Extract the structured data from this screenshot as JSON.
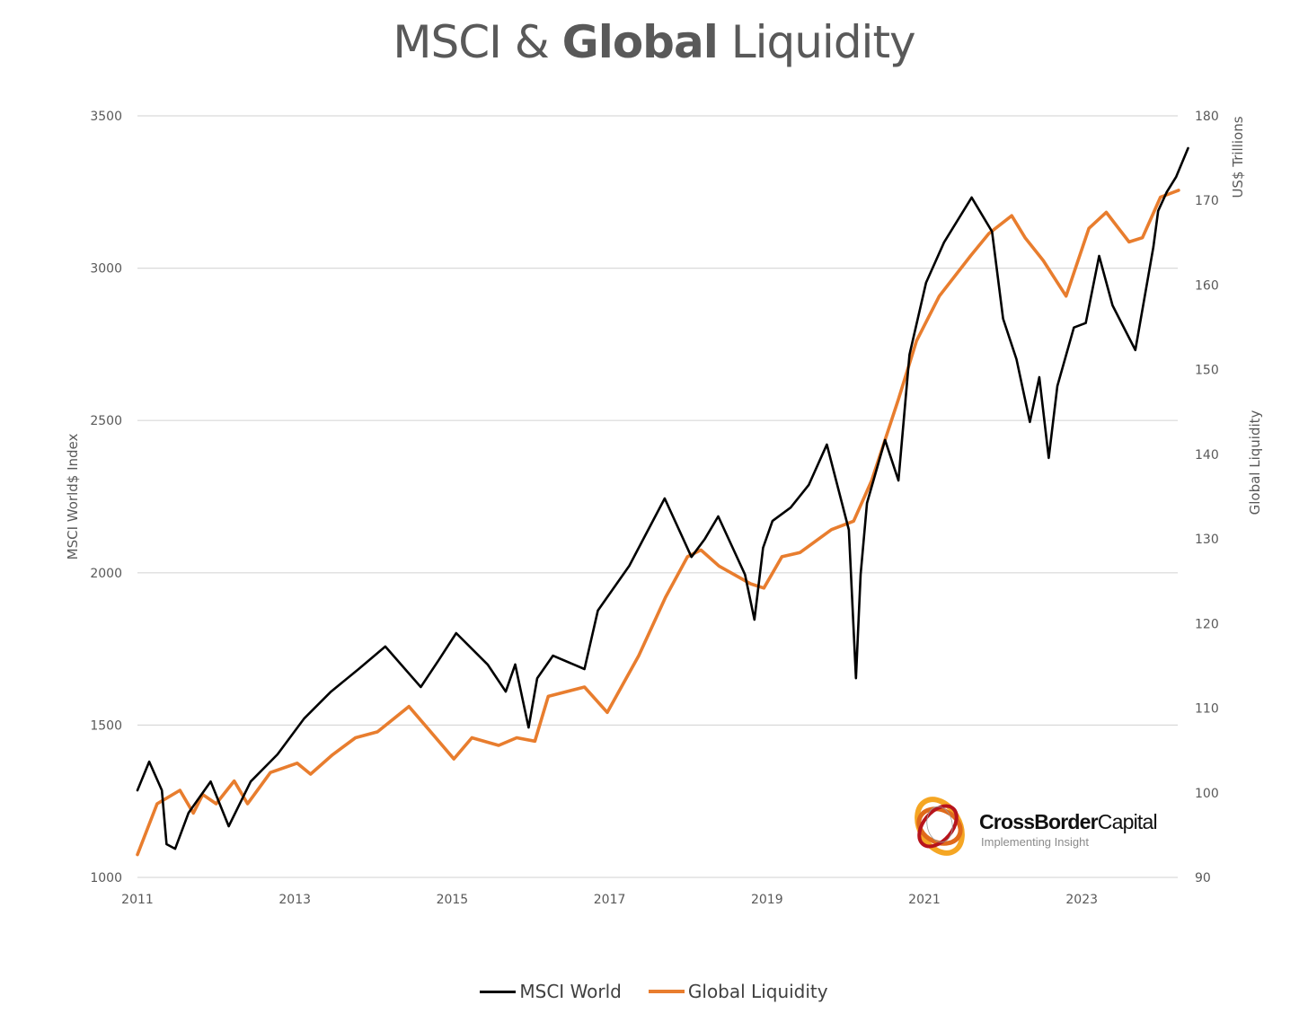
{
  "chart_data": {
    "type": "line",
    "title": "MSCI & Global Liquidity",
    "title_parts": [
      {
        "text": "MSCI & ",
        "bold": false
      },
      {
        "text": "Global",
        "bold": true
      },
      {
        "text": " Liquidity",
        "bold": false
      }
    ],
    "xlabel": "",
    "x_ticks": [
      "2011",
      "2013",
      "2015",
      "2017",
      "2019",
      "2021",
      "2023"
    ],
    "xlim": [
      2011,
      2024.4
    ],
    "y_left": {
      "label": "MSCI World$ Index",
      "lim": [
        1000,
        3500
      ],
      "ticks": [
        "1000",
        "1500",
        "2000",
        "2500",
        "3000",
        "3500"
      ]
    },
    "y_right": {
      "label_top": "US$ Trillions",
      "label_bottom": "Global Liquidity",
      "lim": [
        90,
        180
      ],
      "ticks": [
        "90",
        "100",
        "110",
        "120",
        "130",
        "140",
        "150",
        "160",
        "170",
        "180"
      ]
    },
    "grid": true,
    "legend_position": "bottom",
    "series": [
      {
        "name": "MSCI World",
        "axis": "left",
        "color": "#000000",
        "x": [
          2011.0,
          2011.15,
          2011.31,
          2011.37,
          2011.48,
          2011.65,
          2011.93,
          2012.16,
          2012.44,
          2012.78,
          2013.12,
          2013.46,
          2013.81,
          2014.15,
          2014.6,
          2014.83,
          2015.05,
          2015.45,
          2015.68,
          2015.8,
          2015.97,
          2016.08,
          2016.28,
          2016.68,
          2016.85,
          2017.25,
          2017.7,
          2018.04,
          2018.21,
          2018.38,
          2018.72,
          2018.84,
          2018.95,
          2019.07,
          2019.3,
          2019.53,
          2019.76,
          2020.04,
          2020.13,
          2020.19,
          2020.27,
          2020.5,
          2020.67,
          2020.81,
          2021.02,
          2021.25,
          2021.6,
          2021.86,
          2022.0,
          2022.17,
          2022.34,
          2022.46,
          2022.58,
          2022.69,
          2022.9,
          2023.05,
          2023.22,
          2023.39,
          2023.68,
          2023.91,
          2023.97,
          2024.08,
          2024.2,
          2024.35
        ],
        "y": [
          1286,
          1380,
          1286,
          1109,
          1094,
          1212,
          1315,
          1168,
          1315,
          1404,
          1522,
          1610,
          1684,
          1758,
          1625,
          1714,
          1802,
          1699,
          1610,
          1699,
          1492,
          1654,
          1728,
          1684,
          1876,
          2023,
          2244,
          2052,
          2111,
          2185,
          1994,
          1846,
          2082,
          2170,
          2214,
          2288,
          2421,
          2141,
          1654,
          1994,
          2229,
          2436,
          2303,
          2716,
          2952,
          3085,
          3232,
          3120,
          2834,
          2701,
          2495,
          2642,
          2377,
          2613,
          2805,
          2820,
          3040,
          2878,
          2731,
          3070,
          3188,
          3250,
          3300,
          3394
        ]
      },
      {
        "name": "Global Liquidity",
        "axis": "right",
        "color": "#E87D2E",
        "x": [
          2011.0,
          2011.25,
          2011.54,
          2011.71,
          2011.83,
          2012.0,
          2012.23,
          2012.4,
          2012.69,
          2013.03,
          2013.2,
          2013.48,
          2013.77,
          2014.05,
          2014.45,
          2014.68,
          2015.02,
          2015.25,
          2015.59,
          2015.82,
          2016.05,
          2016.22,
          2016.68,
          2016.97,
          2017.37,
          2017.71,
          2017.99,
          2018.16,
          2018.39,
          2018.79,
          2018.96,
          2019.19,
          2019.42,
          2019.82,
          2020.1,
          2020.33,
          2020.67,
          2020.9,
          2021.19,
          2021.59,
          2021.82,
          2022.11,
          2022.28,
          2022.51,
          2022.8,
          2023.09,
          2023.31,
          2023.6,
          2023.77,
          2024.0,
          2024.23
        ],
        "y": [
          92.7,
          98.7,
          100.3,
          97.6,
          99.8,
          98.7,
          101.4,
          98.7,
          102.4,
          103.5,
          102.2,
          104.5,
          106.5,
          107.2,
          110.2,
          107.7,
          104.0,
          106.5,
          105.6,
          106.5,
          106.1,
          111.4,
          112.5,
          109.5,
          116.2,
          123.1,
          127.9,
          128.7,
          126.8,
          124.7,
          124.2,
          127.9,
          128.4,
          131.1,
          132.1,
          136.9,
          146.5,
          153.4,
          158.7,
          163.5,
          166.1,
          168.2,
          165.6,
          162.9,
          158.7,
          166.7,
          168.6,
          165.1,
          165.6,
          170.4,
          171.2
        ]
      }
    ]
  },
  "logo": {
    "name_bold": "CrossBorder",
    "name_regular": "Capital",
    "tagline": "Implementing Insight"
  }
}
